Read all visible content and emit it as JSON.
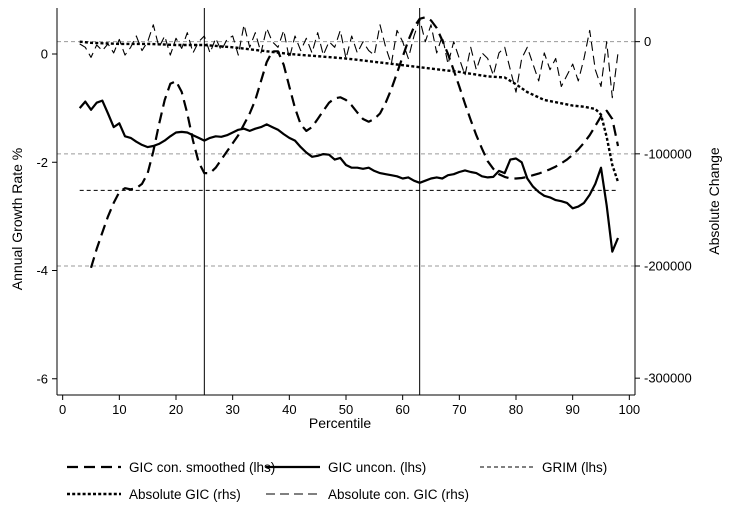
{
  "chart_data": {
    "type": "line",
    "xlabel": "Percentile",
    "ylabel": "Annual Growth Rate %",
    "y2label": "Absolute Change",
    "xlim": [
      -1,
      101
    ],
    "ylim": [
      -6.3,
      0.85
    ],
    "y2lim": [
      -315000,
      30000
    ],
    "xticks": [
      0,
      10,
      20,
      30,
      40,
      50,
      60,
      70,
      80,
      90,
      100
    ],
    "yticks": [
      -6,
      -4,
      -2,
      0
    ],
    "y2ticks": [
      -300000,
      -200000,
      -100000,
      0
    ],
    "x_tick_labels": [
      "0",
      "10",
      "20",
      "30",
      "40",
      "50",
      "60",
      "70",
      "80",
      "90",
      "100"
    ],
    "y_tick_labels": [
      "-6",
      "-4",
      "-2",
      "0"
    ],
    "y2_tick_labels": [
      "-300000",
      "-200000",
      "-100000",
      "0"
    ],
    "hlines_rhs": [
      0,
      -100000,
      -200000
    ],
    "vlines": [
      25,
      63
    ],
    "legend_placement": "bottom",
    "series": [
      {
        "name": "GIC con. smoothed (lhs)",
        "axis": "lhs",
        "style": "longdash",
        "x": [
          5,
          6,
          7,
          8,
          9,
          10,
          11,
          12,
          13,
          14,
          15,
          16,
          17,
          18,
          19,
          20,
          21,
          22,
          23,
          24,
          25,
          26,
          27,
          28,
          29,
          30,
          31,
          32,
          33,
          34,
          35,
          36,
          37,
          38,
          39,
          40,
          41,
          42,
          43,
          44,
          45,
          46,
          47,
          48,
          49,
          50,
          51,
          52,
          53,
          54,
          55,
          56,
          57,
          58,
          59,
          60,
          61,
          62,
          63,
          64,
          65,
          66,
          67,
          68,
          69,
          70,
          71,
          72,
          73,
          74,
          75,
          76,
          77,
          78,
          79,
          80,
          81,
          82,
          83,
          84,
          85,
          86,
          87,
          88,
          89,
          90,
          91,
          92,
          93,
          94,
          95,
          96,
          97,
          98
        ],
        "y": [
          -3.95,
          -3.6,
          -3.3,
          -3.0,
          -2.75,
          -2.55,
          -2.48,
          -2.5,
          -2.48,
          -2.4,
          -2.2,
          -1.8,
          -1.3,
          -0.85,
          -0.55,
          -0.5,
          -0.7,
          -1.1,
          -1.6,
          -2.0,
          -2.2,
          -2.2,
          -2.1,
          -1.95,
          -1.8,
          -1.65,
          -1.5,
          -1.3,
          -1.1,
          -0.85,
          -0.5,
          -0.15,
          0.05,
          0.05,
          -0.2,
          -0.6,
          -1.0,
          -1.3,
          -1.42,
          -1.35,
          -1.2,
          -1.05,
          -0.9,
          -0.82,
          -0.8,
          -0.85,
          -0.95,
          -1.08,
          -1.2,
          -1.25,
          -1.2,
          -1.1,
          -0.9,
          -0.65,
          -0.35,
          -0.05,
          0.25,
          0.5,
          0.65,
          0.68,
          0.62,
          0.48,
          0.25,
          0.0,
          -0.3,
          -0.6,
          -0.92,
          -1.22,
          -1.5,
          -1.75,
          -1.98,
          -2.12,
          -2.22,
          -2.27,
          -2.3,
          -2.3,
          -2.29,
          -2.27,
          -2.24,
          -2.21,
          -2.17,
          -2.13,
          -2.08,
          -2.02,
          -1.95,
          -1.86,
          -1.76,
          -1.64,
          -1.5,
          -1.33,
          -1.15,
          -1.05,
          -1.2,
          -1.7
        ],
        "color": "#000000"
      },
      {
        "name": "GIC uncon. (lhs)",
        "axis": "lhs",
        "style": "solid",
        "x": [
          3,
          4,
          5,
          6,
          7,
          8,
          9,
          10,
          11,
          12,
          13,
          14,
          15,
          16,
          17,
          18,
          19,
          20,
          21,
          22,
          23,
          24,
          25,
          26,
          27,
          28,
          29,
          30,
          31,
          32,
          33,
          34,
          35,
          36,
          37,
          38,
          39,
          40,
          41,
          42,
          43,
          44,
          45,
          46,
          47,
          48,
          49,
          50,
          51,
          52,
          53,
          54,
          55,
          56,
          57,
          58,
          59,
          60,
          61,
          62,
          63,
          64,
          65,
          66,
          67,
          68,
          69,
          70,
          71,
          72,
          73,
          74,
          75,
          76,
          77,
          78,
          79,
          80,
          81,
          82,
          83,
          84,
          85,
          86,
          87,
          88,
          89,
          90,
          91,
          92,
          93,
          94,
          95,
          96,
          97,
          98
        ],
        "y": [
          -1.0,
          -0.88,
          -1.03,
          -0.9,
          -0.86,
          -1.1,
          -1.35,
          -1.28,
          -1.52,
          -1.55,
          -1.62,
          -1.68,
          -1.72,
          -1.7,
          -1.66,
          -1.6,
          -1.52,
          -1.45,
          -1.44,
          -1.45,
          -1.5,
          -1.55,
          -1.6,
          -1.55,
          -1.52,
          -1.53,
          -1.5,
          -1.45,
          -1.4,
          -1.38,
          -1.42,
          -1.38,
          -1.35,
          -1.3,
          -1.35,
          -1.4,
          -1.48,
          -1.55,
          -1.6,
          -1.72,
          -1.82,
          -1.9,
          -1.88,
          -1.85,
          -1.86,
          -1.95,
          -1.92,
          -2.05,
          -2.1,
          -2.1,
          -2.12,
          -2.1,
          -2.16,
          -2.2,
          -2.22,
          -2.24,
          -2.26,
          -2.3,
          -2.28,
          -2.34,
          -2.38,
          -2.34,
          -2.3,
          -2.28,
          -2.3,
          -2.24,
          -2.22,
          -2.18,
          -2.15,
          -2.18,
          -2.2,
          -2.26,
          -2.28,
          -2.27,
          -2.16,
          -2.2,
          -1.95,
          -1.93,
          -2.0,
          -2.3,
          -2.45,
          -2.55,
          -2.62,
          -2.65,
          -2.7,
          -2.72,
          -2.75,
          -2.85,
          -2.82,
          -2.75,
          -2.6,
          -2.4,
          -2.1,
          -2.8,
          -3.65,
          -3.4
        ],
        "color": "#000000"
      },
      {
        "name": "GRIM (lhs)",
        "axis": "lhs",
        "style": "shortdash",
        "x": [
          3,
          98
        ],
        "y": [
          -2.52,
          -2.52
        ],
        "color": "#000000"
      },
      {
        "name": "Absolute GIC (rhs)",
        "axis": "rhs",
        "style": "dot",
        "x": [
          3,
          5,
          10,
          15,
          20,
          25,
          30,
          35,
          40,
          45,
          50,
          55,
          60,
          65,
          70,
          75,
          78,
          80,
          82,
          85,
          88,
          90,
          92,
          94,
          95,
          96,
          97,
          98
        ],
        "y": [
          0,
          -1000,
          -2000,
          -2000,
          -3000,
          -3000,
          -5000,
          -8000,
          -11000,
          -13000,
          -15000,
          -18000,
          -21000,
          -24000,
          -27000,
          -31000,
          -32000,
          -38000,
          -45000,
          -52000,
          -55000,
          -57000,
          -58000,
          -60000,
          -65000,
          -85000,
          -110000,
          -125000
        ],
        "color": "#000000"
      },
      {
        "name": "Absolute con. GIC (rhs)",
        "axis": "rhs",
        "style": "dash",
        "x": [
          3,
          4,
          5,
          6,
          7,
          8,
          9,
          10,
          11,
          12,
          13,
          14,
          15,
          16,
          17,
          18,
          19,
          20,
          21,
          22,
          23,
          24,
          25,
          26,
          27,
          28,
          29,
          30,
          31,
          32,
          33,
          34,
          35,
          36,
          37,
          38,
          39,
          40,
          41,
          42,
          43,
          44,
          45,
          46,
          47,
          48,
          49,
          50,
          51,
          52,
          53,
          54,
          55,
          56,
          57,
          58,
          59,
          60,
          61,
          62,
          63,
          64,
          65,
          66,
          67,
          68,
          69,
          70,
          71,
          72,
          73,
          74,
          75,
          76,
          77,
          78,
          79,
          80,
          81,
          82,
          83,
          84,
          85,
          86,
          87,
          88,
          89,
          90,
          91,
          92,
          93,
          94,
          95,
          96,
          97,
          98
        ],
        "y": [
          -2000,
          -5000,
          -14000,
          -3000,
          -8000,
          -2000,
          -10000,
          2000,
          -12000,
          -5000,
          5000,
          -8000,
          0,
          15000,
          -5000,
          5000,
          -12000,
          3000,
          -6000,
          8000,
          -10000,
          0,
          5000,
          -10000,
          3000,
          -8000,
          2000,
          5000,
          -12000,
          15000,
          -5000,
          8000,
          -10000,
          12000,
          0,
          -5000,
          10000,
          -15000,
          5000,
          -8000,
          3000,
          -10000,
          8000,
          -12000,
          0,
          -5000,
          10000,
          -15000,
          5000,
          -10000,
          0,
          -8000,
          -12000,
          15000,
          -5000,
          -20000,
          10000,
          0,
          -15000,
          5000,
          20000,
          0,
          15000,
          -10000,
          5000,
          -20000,
          0,
          -15000,
          -30000,
          -5000,
          -25000,
          -10000,
          -15000,
          -30000,
          -10000,
          -5000,
          -25000,
          -45000,
          -15000,
          -5000,
          -20000,
          -35000,
          -10000,
          -25000,
          -15000,
          -40000,
          -30000,
          -20000,
          -35000,
          -15000,
          10000,
          -25000,
          -40000,
          0,
          -50000,
          -10000
        ],
        "color": "#000000"
      }
    ]
  }
}
